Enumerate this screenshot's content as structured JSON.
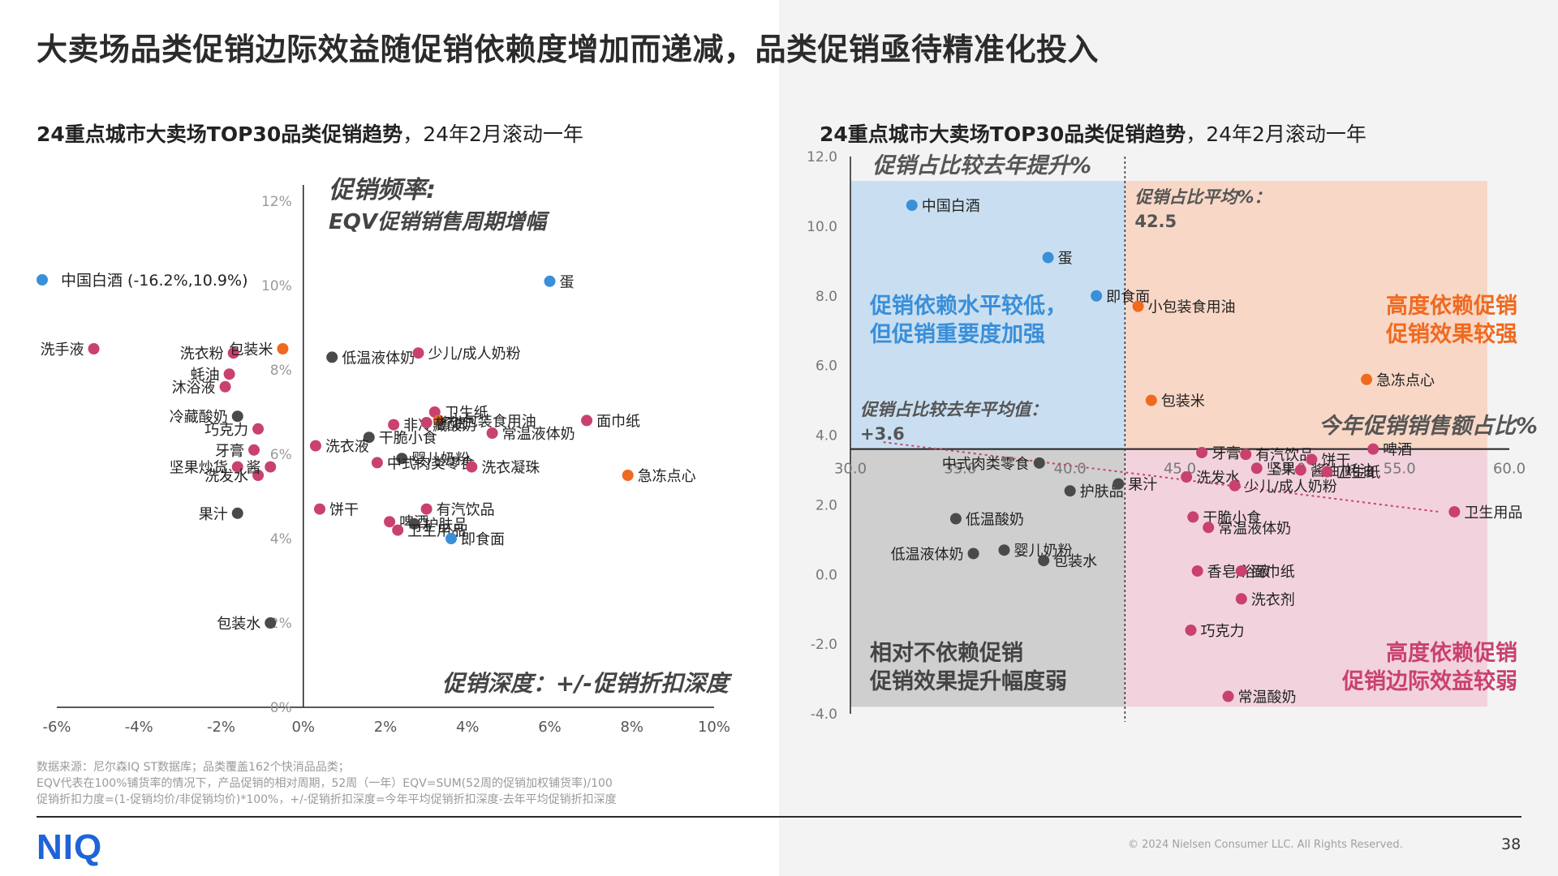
{
  "title": "大卖场品类促销边际效益随促销依赖度增加而递减，品类促销亟待精准化投入",
  "left_subtitle_bold": "24重点城市大卖场TOP30品类促销趋势",
  "left_subtitle_rest": "，24年2月滚动一年",
  "right_subtitle_bold": "24重点城市大卖场TOP30品类促销趋势",
  "right_subtitle_rest": "，24年2月滚动一年",
  "colors": {
    "pink": "#c9416e",
    "dark": "#4a4a4a",
    "orange": "#ef6a1f",
    "blue": "#3a8fd9",
    "q_blue": "#c9dff1",
    "q_orange": "#f8d7c6",
    "q_gray": "#cfcfcf",
    "q_pink": "#f2d3dd"
  },
  "footer": {
    "line1": "数据来源：尼尔森IQ ST数据库；品类覆盖162个快消品品类；",
    "line2": "EQV代表在100%铺货率的情况下，产品促销的相对周期，52周（一年）EQV=SUM(52周的促销加权铺货率)/100",
    "line3": "促销折扣力度=(1-促销均价/非促销均价)*100%，+/-促销折扣深度=今年平均促销折扣深度-去年平均促销折扣深度"
  },
  "logo": "NIQ",
  "copyright": "© 2024 Nielsen Consumer LLC. All Rights Reserved.",
  "page_number": "38",
  "chart_data": [
    {
      "type": "scatter",
      "title": "24重点城市大卖场TOP30品类促销趋势，24年2月滚动一年",
      "xlabel": "促销深度：+/-促销折扣深度",
      "ylabel_line1": "促销频率:",
      "ylabel_line2": "EQV促销销售周期增幅",
      "xlim": [
        -6,
        10
      ],
      "ylim": [
        0,
        12
      ],
      "x_ticks": [
        "-6%",
        "-4%",
        "-2%",
        "0%",
        "2%",
        "4%",
        "6%",
        "8%",
        "10%"
      ],
      "y_ticks": [
        "0%",
        "2%",
        "4%",
        "6%",
        "8%",
        "10%",
        "12%"
      ],
      "legend_outlier": "中国白酒 (-16.2%,10.9%)",
      "points": [
        {
          "label": "蛋",
          "x": 6.0,
          "y": 10.1,
          "c": "blue"
        },
        {
          "label": "洗手液",
          "x": -5.1,
          "y": 8.5,
          "c": "pink"
        },
        {
          "label": "洗衣粉",
          "x": -1.7,
          "y": 8.4,
          "c": "pink"
        },
        {
          "label": "包装米",
          "x": -0.5,
          "y": 8.5,
          "c": "orange"
        },
        {
          "label": "蚝油",
          "x": -1.8,
          "y": 7.9,
          "c": "pink"
        },
        {
          "label": "沐浴液",
          "x": -1.9,
          "y": 7.6,
          "c": "pink"
        },
        {
          "label": "低温液体奶",
          "x": 0.7,
          "y": 8.3,
          "c": "dark"
        },
        {
          "label": "少儿/成人奶粉",
          "x": 2.8,
          "y": 8.4,
          "c": "pink"
        },
        {
          "label": "冷藏酸奶",
          "x": -1.6,
          "y": 6.9,
          "c": "dark"
        },
        {
          "label": "巧克力",
          "x": -1.1,
          "y": 6.6,
          "c": "pink"
        },
        {
          "label": "卫生纸",
          "x": 3.2,
          "y": 7.0,
          "c": "pink"
        },
        {
          "label": "小包装食用油",
          "x": 3.3,
          "y": 6.8,
          "c": "orange"
        },
        {
          "label": "非冷藏酸奶",
          "x": 2.2,
          "y": 6.7,
          "c": "pink"
        },
        {
          "label": "酱油",
          "x": 3.0,
          "y": 6.75,
          "c": "pink"
        },
        {
          "label": "面巾纸",
          "x": 6.9,
          "y": 6.8,
          "c": "pink"
        },
        {
          "label": "常温液体奶",
          "x": 4.6,
          "y": 6.5,
          "c": "pink"
        },
        {
          "label": "干脆小食",
          "x": 1.6,
          "y": 6.4,
          "c": "dark"
        },
        {
          "label": "牙膏",
          "x": -1.2,
          "y": 6.1,
          "c": "pink"
        },
        {
          "label": "洗衣液",
          "x": 0.3,
          "y": 6.2,
          "c": "pink"
        },
        {
          "label": "婴儿奶粉",
          "x": 2.4,
          "y": 5.9,
          "c": "dark"
        },
        {
          "label": "坚果炒货",
          "x": -1.6,
          "y": 5.7,
          "c": "pink"
        },
        {
          "label": "中式肉类零食",
          "x": 1.8,
          "y": 5.8,
          "c": "pink"
        },
        {
          "label": "洗衣凝珠",
          "x": 4.1,
          "y": 5.7,
          "c": "pink"
        },
        {
          "label": "急冻点心",
          "x": 7.9,
          "y": 5.5,
          "c": "orange"
        },
        {
          "label": "洗发水",
          "x": -1.1,
          "y": 5.5,
          "c": "pink"
        },
        {
          "label": "酱",
          "x": -0.8,
          "y": 5.7,
          "c": "pink"
        },
        {
          "label": "饼干",
          "x": 0.4,
          "y": 4.7,
          "c": "pink"
        },
        {
          "label": "有汽饮品",
          "x": 3.0,
          "y": 4.7,
          "c": "pink"
        },
        {
          "label": "果汁",
          "x": -1.6,
          "y": 4.6,
          "c": "dark"
        },
        {
          "label": "啤酒",
          "x": 2.1,
          "y": 4.4,
          "c": "pink"
        },
        {
          "label": "护肤品",
          "x": 2.7,
          "y": 4.35,
          "c": "dark"
        },
        {
          "label": "卫生用品",
          "x": 2.3,
          "y": 4.2,
          "c": "pink"
        },
        {
          "label": "即食面",
          "x": 3.6,
          "y": 4.0,
          "c": "blue"
        },
        {
          "label": "包装水",
          "x": -0.8,
          "y": 2.0,
          "c": "dark"
        }
      ]
    },
    {
      "type": "scatter",
      "title": "24重点城市大卖场TOP30品类促销趋势，24年2月滚动一年",
      "xlabel": "今年促销销售额占比%",
      "ylabel": "促销占比较去年提升%",
      "xlim": [
        30,
        60
      ],
      "ylim": [
        -4,
        12
      ],
      "x_ticks": [
        "30.0",
        "35.0",
        "40.0",
        "45.0",
        "50.0",
        "55.0",
        "60.0"
      ],
      "y_ticks": [
        "-4.0",
        "-2.0",
        "0.0",
        "2.0",
        "4.0",
        "6.0",
        "8.0",
        "10.0",
        "12.0"
      ],
      "avg_x_label": "促销占比平均%：",
      "avg_x_value": "42.5",
      "avg_y_label": "促销占比较去年平均值：",
      "avg_y_value": "+3.6",
      "quadrants": {
        "top_left_line1": "促销依赖水平较低，",
        "top_left_line2": "但促销重要度加强",
        "top_right_line1": "高度依赖促销",
        "top_right_line2": "促销效果较强",
        "bottom_left_line1": "相对不依赖促销",
        "bottom_left_line2": "促销效果提升幅度弱",
        "bottom_right_line1": "高度依赖促销",
        "bottom_right_line2": "促销边际效益较弱"
      },
      "points": [
        {
          "label": "中国白酒",
          "x": 32.8,
          "y": 10.6,
          "c": "blue"
        },
        {
          "label": "蛋",
          "x": 39.0,
          "y": 9.1,
          "c": "blue"
        },
        {
          "label": "即食面",
          "x": 41.2,
          "y": 8.0,
          "c": "blue"
        },
        {
          "label": "小包装食用油",
          "x": 43.1,
          "y": 7.7,
          "c": "orange"
        },
        {
          "label": "急冻点心",
          "x": 53.5,
          "y": 5.6,
          "c": "orange"
        },
        {
          "label": "包装米",
          "x": 43.7,
          "y": 5.0,
          "c": "orange"
        },
        {
          "label": "啤酒",
          "x": 53.8,
          "y": 3.6,
          "c": "pink"
        },
        {
          "label": "牙膏",
          "x": 46.0,
          "y": 3.5,
          "c": "pink"
        },
        {
          "label": "有汽饮品",
          "x": 48.0,
          "y": 3.45,
          "c": "pink"
        },
        {
          "label": "饼干",
          "x": 51.0,
          "y": 3.3,
          "c": "pink"
        },
        {
          "label": "坚果",
          "x": 48.5,
          "y": 3.05,
          "c": "pink"
        },
        {
          "label": "酱油/蚝油",
          "x": 50.5,
          "y": 3.0,
          "c": "pink"
        },
        {
          "label": "卫生纸",
          "x": 51.7,
          "y": 2.95,
          "c": "pink"
        },
        {
          "label": "洗发水",
          "x": 45.3,
          "y": 2.8,
          "c": "pink"
        },
        {
          "label": "少儿/成人奶粉",
          "x": 47.5,
          "y": 2.55,
          "c": "pink"
        },
        {
          "label": "卫生用品",
          "x": 57.5,
          "y": 1.8,
          "c": "pink"
        },
        {
          "label": "中式肉类零食",
          "x": 38.6,
          "y": 3.2,
          "c": "dark"
        },
        {
          "label": "护肤品",
          "x": 40.0,
          "y": 2.4,
          "c": "dark"
        },
        {
          "label": "果汁",
          "x": 42.2,
          "y": 2.6,
          "c": "dark"
        },
        {
          "label": "低温酸奶",
          "x": 34.8,
          "y": 1.6,
          "c": "dark"
        },
        {
          "label": "干脆小食",
          "x": 45.6,
          "y": 1.65,
          "c": "pink"
        },
        {
          "label": "常温液体奶",
          "x": 46.3,
          "y": 1.35,
          "c": "pink"
        },
        {
          "label": "婴儿奶粉",
          "x": 37.0,
          "y": 0.7,
          "c": "dark"
        },
        {
          "label": "低温液体奶",
          "x": 35.6,
          "y": 0.6,
          "c": "dark"
        },
        {
          "label": "包装水",
          "x": 38.8,
          "y": 0.4,
          "c": "dark"
        },
        {
          "label": "香皂/浴液",
          "x": 45.8,
          "y": 0.1,
          "c": "pink"
        },
        {
          "label": "面巾纸",
          "x": 47.8,
          "y": 0.1,
          "c": "pink"
        },
        {
          "label": "洗衣剂",
          "x": 47.8,
          "y": -0.7,
          "c": "pink"
        },
        {
          "label": "巧克力",
          "x": 45.5,
          "y": -1.6,
          "c": "pink"
        },
        {
          "label": "常温酸奶",
          "x": 47.2,
          "y": -3.5,
          "c": "pink"
        }
      ]
    }
  ]
}
